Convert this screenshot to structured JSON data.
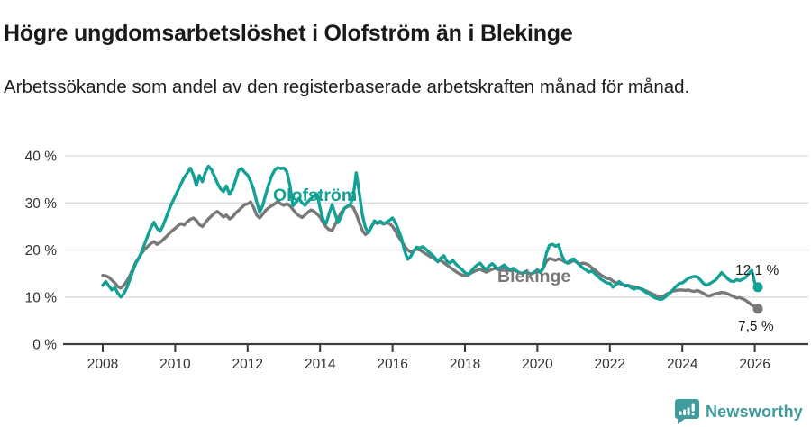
{
  "header": {
    "title": "Högre ungdomsarbetslöshet i Olofström än i Blekinge",
    "subtitle": "Arbetssökande som andel av den registerbaserade arbetskraften månad för månad."
  },
  "chart_data": {
    "type": "line",
    "x_unit": "month",
    "x_start": "2008-01",
    "x_end": "2026-02",
    "grid": "horizontal",
    "ylim": [
      0,
      42
    ],
    "x_ticks": [
      {
        "year": 2008,
        "label": "2008"
      },
      {
        "year": 2010,
        "label": "2010"
      },
      {
        "year": 2012,
        "label": "2012"
      },
      {
        "year": 2014,
        "label": "2014"
      },
      {
        "year": 2016,
        "label": "2016"
      },
      {
        "year": 2018,
        "label": "2018"
      },
      {
        "year": 2020,
        "label": "2020"
      },
      {
        "year": 2022,
        "label": "2022"
      },
      {
        "year": 2024,
        "label": "2024"
      },
      {
        "year": 2026,
        "label": "2026"
      }
    ],
    "y_ticks": [
      {
        "value": 0,
        "label": "0 %"
      },
      {
        "value": 10,
        "label": "10 %"
      },
      {
        "value": 20,
        "label": "20 %"
      },
      {
        "value": 30,
        "label": "30 %"
      },
      {
        "value": 40,
        "label": "40 %"
      }
    ],
    "series": [
      {
        "name": "Olofström",
        "color": "#11a195",
        "end_label": "12,1 %",
        "end_value": 12.1,
        "values": [
          12.5,
          13.3,
          12.4,
          11.5,
          12.0,
          10.8,
          10.0,
          10.7,
          12.0,
          13.8,
          15.6,
          17.2,
          18.3,
          19.8,
          21.5,
          23.2,
          24.8,
          25.9,
          24.6,
          24.0,
          25.2,
          26.9,
          28.6,
          30.1,
          31.4,
          32.8,
          34.1,
          35.4,
          36.3,
          37.4,
          36.0,
          33.7,
          35.8,
          34.5,
          36.5,
          37.8,
          37.1,
          35.7,
          34.2,
          33.0,
          32.4,
          33.6,
          31.8,
          32.9,
          34.8,
          36.9,
          37.3,
          36.5,
          35.9,
          34.6,
          32.8,
          30.2,
          28.0,
          29.5,
          31.8,
          34.0,
          35.8,
          37.0,
          37.5,
          37.3,
          37.4,
          36.6,
          33.8,
          29.4,
          30.1,
          31.0,
          30.0,
          29.5,
          30.3,
          30.9,
          31.5,
          31.9,
          28.9,
          26.4,
          25.6,
          27.8,
          29.6,
          27.6,
          25.8,
          27.2,
          28.8,
          29.3,
          29.6,
          31.5,
          36.4,
          32.0,
          27.5,
          24.8,
          23.7,
          24.9,
          26.2,
          25.7,
          26.1,
          25.6,
          25.9,
          26.3,
          26.8,
          25.8,
          24.2,
          22.4,
          19.8,
          18.0,
          18.6,
          19.8,
          20.6,
          20.4,
          20.7,
          20.2,
          19.6,
          19.0,
          18.4,
          17.5,
          18.3,
          18.8,
          17.6,
          17.2,
          17.8,
          17.0,
          16.4,
          15.8,
          15.2,
          14.8,
          15.4,
          16.2,
          16.8,
          17.2,
          16.4,
          15.8,
          16.6,
          17.1,
          16.5,
          16.0,
          16.4,
          16.8,
          16.2,
          15.8,
          16.1,
          15.6,
          15.2,
          15.0,
          15.4,
          15.1,
          14.9,
          15.3,
          15.8,
          15.2,
          16.5,
          19.4,
          21.0,
          21.2,
          20.8,
          21.1,
          19.0,
          17.6,
          17.2,
          17.9,
          18.1,
          17.4,
          16.8,
          16.2,
          15.8,
          15.3,
          15.6,
          15.0,
          14.4,
          13.8,
          13.4,
          13.0,
          12.9,
          12.1,
          12.6,
          13.3,
          12.8,
          12.3,
          12.5,
          12.0,
          11.7,
          12.0,
          11.8,
          11.4,
          11.0,
          10.6,
          10.2,
          9.8,
          9.6,
          9.5,
          9.8,
          10.4,
          10.9,
          11.6,
          12.3,
          12.9,
          13.0,
          13.5,
          14.0,
          14.2,
          14.4,
          14.3,
          13.6,
          12.9,
          12.5,
          12.8,
          13.2,
          13.6,
          14.4,
          15.2,
          14.6,
          13.9,
          13.4,
          13.3,
          13.7,
          13.5,
          13.8,
          14.2,
          15.0,
          15.7,
          13.0,
          12.1
        ]
      },
      {
        "name": "Blekinge",
        "color": "#787878",
        "end_label": "7,5 %",
        "end_value": 7.5,
        "values": [
          14.6,
          14.5,
          14.2,
          13.6,
          13.0,
          12.2,
          11.9,
          12.5,
          13.4,
          14.6,
          16.0,
          17.4,
          18.4,
          19.4,
          20.2,
          20.8,
          21.4,
          21.8,
          21.2,
          21.6,
          22.2,
          22.8,
          23.5,
          24.1,
          24.6,
          25.2,
          25.6,
          25.3,
          26.0,
          26.5,
          26.8,
          26.3,
          25.4,
          25.0,
          25.8,
          26.6,
          27.2,
          27.8,
          28.2,
          27.6,
          27.0,
          27.4,
          26.6,
          27.0,
          27.8,
          28.4,
          29.0,
          29.6,
          29.8,
          30.2,
          29.0,
          27.4,
          26.8,
          27.6,
          28.4,
          29.0,
          29.4,
          29.8,
          30.4,
          29.8,
          29.5,
          29.8,
          29.4,
          28.6,
          27.8,
          27.3,
          26.9,
          27.4,
          28.0,
          28.5,
          28.2,
          27.6,
          27.0,
          25.8,
          24.9,
          24.3,
          24.2,
          25.4,
          26.8,
          28.0,
          28.8,
          29.2,
          29.4,
          29.0,
          27.6,
          25.8,
          24.2,
          23.3,
          23.8,
          24.9,
          25.9,
          25.6,
          25.9,
          25.5,
          25.8,
          25.6,
          25.0,
          24.0,
          22.8,
          21.8,
          20.8,
          20.0,
          19.6,
          19.9,
          20.2,
          20.0,
          19.6,
          19.2,
          18.8,
          18.4,
          18.0,
          17.6,
          17.8,
          17.3,
          16.8,
          16.3,
          15.9,
          15.4,
          15.0,
          14.7,
          14.5,
          14.7,
          15.1,
          15.4,
          15.7,
          15.9,
          15.6,
          15.3,
          15.6,
          15.9,
          16.1,
          15.8,
          16.0,
          16.2,
          15.9,
          15.6,
          15.8,
          15.5,
          15.2,
          15.0,
          15.3,
          15.1,
          14.9,
          15.2,
          15.5,
          15.3,
          16.2,
          17.6,
          18.2,
          18.0,
          17.8,
          18.1,
          17.9,
          17.5,
          17.2,
          17.4,
          17.8,
          17.4,
          17.0,
          17.2,
          17.1,
          16.8,
          16.2,
          15.8,
          15.2,
          14.7,
          14.3,
          14.0,
          13.9,
          13.4,
          13.0,
          12.9,
          12.7,
          12.5,
          12.5,
          12.3,
          12.2,
          12.0,
          11.8,
          11.6,
          11.3,
          11.0,
          10.7,
          10.4,
          10.2,
          10.1,
          10.3,
          10.7,
          11.0,
          11.3,
          11.4,
          11.5,
          11.5,
          11.4,
          11.5,
          11.3,
          11.2,
          11.4,
          11.1,
          10.8,
          10.4,
          10.2,
          10.5,
          10.7,
          10.8,
          11.0,
          10.9,
          10.7,
          10.4,
          10.1,
          9.8,
          9.9,
          9.6,
          9.3,
          8.8,
          8.3,
          7.9,
          7.5
        ]
      }
    ]
  },
  "footer": {
    "brand": "Newsworthy",
    "brand_color": "#3f9b9c",
    "logo_icon": "newsworthy-speech-bubble-chart-icon"
  }
}
